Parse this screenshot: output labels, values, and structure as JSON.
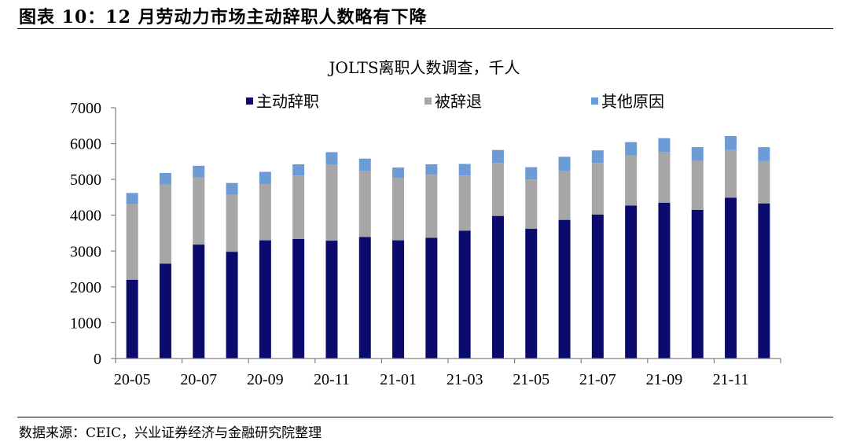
{
  "header": {
    "figure_title": "图表 10：12 月劳动力市场主动辞职人数略有下降"
  },
  "footer": {
    "source": "数据来源：CEIC，兴业证券经济与金融研究院整理"
  },
  "colors": {
    "quits": "#0b0b6e",
    "layoffs": "#a6a6a6",
    "other": "#6c9bd5",
    "axis": "#808080"
  },
  "chart_data": {
    "type": "bar",
    "stacked": true,
    "title": "JOLTS离职人数调查，千人",
    "categories": [
      "20-05",
      "20-06",
      "20-07",
      "20-08",
      "20-09",
      "20-10",
      "20-11",
      "20-12",
      "21-01",
      "21-02",
      "21-03",
      "21-04",
      "21-05",
      "21-06",
      "21-07",
      "21-08",
      "21-09",
      "21-10",
      "21-11",
      "21-12"
    ],
    "x_tick_labels": [
      "20-05",
      "",
      "20-07",
      "",
      "20-09",
      "",
      "20-11",
      "",
      "21-01",
      "",
      "21-03",
      "",
      "21-05",
      "",
      "21-07",
      "",
      "21-09",
      "",
      "21-11",
      ""
    ],
    "ylim": [
      0,
      7000
    ],
    "y_ticks": [
      0,
      1000,
      2000,
      3000,
      4000,
      5000,
      6000,
      7000
    ],
    "legend_position": "top",
    "series": [
      {
        "name": "主动辞职",
        "values": [
          2200,
          2650,
          3180,
          2980,
          3300,
          3340,
          3290,
          3390,
          3300,
          3370,
          3570,
          3980,
          3620,
          3870,
          4020,
          4270,
          4350,
          4150,
          4490,
          4330
        ]
      },
      {
        "name": "被辞退",
        "values": [
          2110,
          2210,
          1870,
          1590,
          1570,
          1770,
          2130,
          1840,
          1740,
          1760,
          1540,
          1480,
          1380,
          1360,
          1440,
          1400,
          1420,
          1370,
          1330,
          1180
        ]
      },
      {
        "name": "其他原因",
        "values": [
          310,
          320,
          330,
          330,
          340,
          310,
          340,
          350,
          290,
          290,
          320,
          360,
          340,
          400,
          350,
          370,
          380,
          380,
          390,
          390
        ]
      }
    ]
  }
}
